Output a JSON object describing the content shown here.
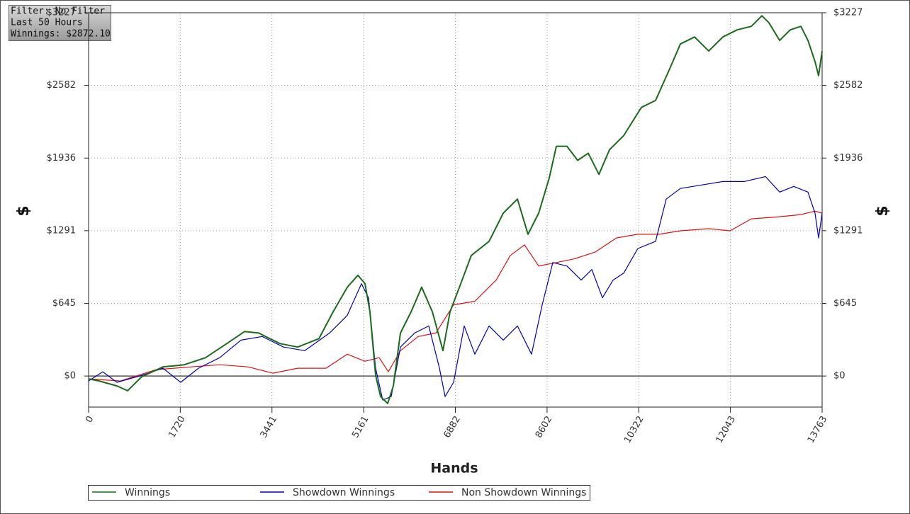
{
  "chart_data": {
    "type": "line",
    "annotations": [
      "Filter: No Filter",
      "Last 50 Hours",
      "Winnings: $2872.10"
    ],
    "xlabel": "Hands",
    "ylabel": "$",
    "xlim": [
      0,
      13763
    ],
    "xticks": [
      0,
      1720,
      3441,
      5161,
      6882,
      8602,
      10322,
      12043,
      13763
    ],
    "ylim": [
      -276,
      3227
    ],
    "yticks": [
      {
        "value": 0,
        "label": "$0"
      },
      {
        "value": 645,
        "label": "$645"
      },
      {
        "value": 1291,
        "label": "$1291"
      },
      {
        "value": 1936,
        "label": "$1936"
      },
      {
        "value": 2582,
        "label": "$2582"
      },
      {
        "value": 3227,
        "label": "$3227"
      }
    ],
    "grid": true,
    "legend": "bottom",
    "series": [
      {
        "name": "Winnings",
        "color": "#1b6b1b",
        "x": [
          0,
          200,
          532,
          731,
          997,
          1396,
          1795,
          2194,
          2593,
          2926,
          3192,
          3590,
          3923,
          4322,
          4588,
          4854,
          5053,
          5186,
          5279,
          5386,
          5479,
          5612,
          5718,
          5851,
          6051,
          6250,
          6450,
          6649,
          6782,
          6982,
          7181,
          7514,
          7780,
          8046,
          8245,
          8445,
          8644,
          8777,
          8976,
          9176,
          9375,
          9575,
          9774,
          10040,
          10372,
          10638,
          10904,
          11104,
          11370,
          11636,
          11902,
          12168,
          12434,
          12633,
          12766,
          12966,
          13165,
          13364,
          13497,
          13630,
          13697,
          13763
        ],
        "values": [
          -25,
          -44,
          -88,
          -131,
          -6,
          81,
          100,
          163,
          288,
          395,
          382,
          288,
          257,
          332,
          570,
          789,
          895,
          820,
          570,
          6,
          -182,
          -244,
          -88,
          382,
          570,
          789,
          570,
          225,
          570,
          820,
          1071,
          1196,
          1447,
          1572,
          1259,
          1447,
          1760,
          2041,
          2041,
          1916,
          1979,
          1791,
          2010,
          2135,
          2386,
          2448,
          2730,
          2949,
          3012,
          2887,
          3012,
          3075,
          3106,
          3200,
          3138,
          2981,
          3075,
          3106,
          2981,
          2793,
          2668,
          2887
        ]
      },
      {
        "name": "Showdown Winnings",
        "color": "#0000b4",
        "x": [
          0,
          266,
          532,
          997,
          1396,
          1729,
          2061,
          2460,
          2859,
          3258,
          3657,
          4056,
          4521,
          4854,
          5119,
          5252,
          5386,
          5519,
          5678,
          5851,
          6117,
          6383,
          6583,
          6689,
          6848,
          7048,
          7247,
          7514,
          7780,
          8046,
          8311,
          8511,
          8710,
          8976,
          9242,
          9442,
          9641,
          9841,
          10040,
          10306,
          10638,
          10838,
          11104,
          11503,
          11902,
          12301,
          12700,
          12966,
          13231,
          13497,
          13630,
          13697,
          13763
        ],
        "values": [
          -44,
          38,
          -56,
          6,
          69,
          -56,
          69,
          163,
          319,
          351,
          257,
          225,
          382,
          539,
          820,
          695,
          69,
          -213,
          -182,
          257,
          382,
          445,
          69,
          -182,
          -56,
          445,
          194,
          445,
          319,
          445,
          194,
          632,
          1008,
          977,
          852,
          946,
          695,
          852,
          914,
          1133,
          1196,
          1572,
          1666,
          1697,
          1728,
          1728,
          1772,
          1634,
          1684,
          1634,
          1447,
          1227,
          1447
        ]
      },
      {
        "name": "Non Showdown Winnings",
        "color": "#e01010",
        "x": [
          0,
          598,
          1263,
          1928,
          2460,
          2992,
          3458,
          3923,
          4455,
          4854,
          5186,
          5452,
          5625,
          5851,
          6184,
          6516,
          6848,
          7247,
          7647,
          7913,
          8179,
          8445,
          8777,
          9109,
          9508,
          9907,
          10306,
          10705,
          11104,
          11636,
          12035,
          12434,
          12966,
          13364,
          13630,
          13763
        ],
        "values": [
          -25,
          -44,
          56,
          81,
          100,
          81,
          25,
          69,
          69,
          194,
          131,
          163,
          38,
          225,
          351,
          382,
          632,
          664,
          852,
          1071,
          1165,
          977,
          1008,
          1040,
          1102,
          1227,
          1259,
          1259,
          1290,
          1309,
          1290,
          1396,
          1415,
          1434,
          1465,
          1447
        ]
      }
    ]
  }
}
